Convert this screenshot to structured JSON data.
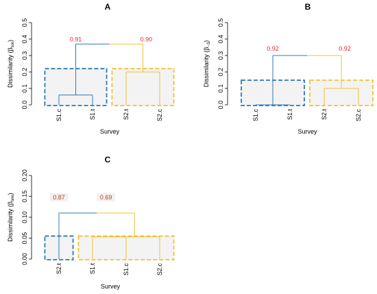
{
  "colors": {
    "blue": "#2b78b8",
    "yellow": "#f1c232",
    "red": "#e8252d",
    "dark_red": "#a0462a",
    "box_fill": "#f3f3f3",
    "label_bg": "#f5efef"
  },
  "chart_data": [
    {
      "type": "dendrogram",
      "panel": "A",
      "ylabel_main": "Dissimilarity (β",
      "ylabel_sub": "sor",
      "ylabel_close": ")",
      "xlabel": "Survey",
      "ylim": [
        0,
        0.5
      ],
      "yticks": [
        "0.0",
        "0.1",
        "0.2",
        "0.3",
        "0.4",
        "0.5"
      ],
      "leaves": [
        "S1.c",
        "S1.t",
        "S2.t",
        "S2.c"
      ],
      "merges": [
        {
          "left": 0,
          "right": 1,
          "height": 0.06,
          "color": "blue"
        },
        {
          "left": 2,
          "right": 3,
          "height": 0.2,
          "color": "yellow"
        },
        {
          "left": "g0",
          "right": "g1",
          "height": 0.37
        }
      ],
      "clusters": [
        {
          "leaves": [
            0,
            1
          ],
          "color": "blue",
          "top": 0.22
        },
        {
          "leaves": [
            2,
            3
          ],
          "color": "yellow",
          "top": 0.22
        }
      ],
      "node_labels": [
        {
          "text": "0.91",
          "at_leaf": 0.5,
          "y": 0.385,
          "color": "red",
          "bg": false
        },
        {
          "text": "0.90",
          "at_leaf": 2.6,
          "y": 0.385,
          "color": "red",
          "bg": false
        }
      ]
    },
    {
      "type": "dendrogram",
      "panel": "B",
      "ylabel_main": "Dissimilarity (β",
      "ylabel_sub": "−3",
      "ylabel_close": ")",
      "xlabel": "Survey",
      "ylim": [
        0,
        0.5
      ],
      "yticks": [
        "0.0",
        "0.1",
        "0.2",
        "0.3",
        "0.4",
        "0.5"
      ],
      "leaves": [
        "S1.c",
        "S1.t",
        "S2.t",
        "S2.c"
      ],
      "merges": [
        {
          "left": 0,
          "right": 1,
          "height": 0.0,
          "color": "blue"
        },
        {
          "left": 2,
          "right": 3,
          "height": 0.1,
          "color": "yellow"
        },
        {
          "left": "g0",
          "right": "g1",
          "height": 0.3
        }
      ],
      "clusters": [
        {
          "leaves": [
            0,
            1
          ],
          "color": "blue",
          "top": 0.15
        },
        {
          "leaves": [
            2,
            3
          ],
          "color": "yellow",
          "top": 0.15
        }
      ],
      "node_labels": [
        {
          "text": "0.92",
          "at_leaf": 0.5,
          "y": 0.33,
          "color": "red",
          "bg": false
        },
        {
          "text": "0.92",
          "at_leaf": 2.6,
          "y": 0.33,
          "color": "red",
          "bg": false
        }
      ]
    },
    {
      "type": "dendrogram",
      "panel": "C",
      "ylabel_main": "Dissimilarity (β",
      "ylabel_sub": "sne",
      "ylabel_close": ")",
      "xlabel": "Survey",
      "ylim": [
        0,
        0.2
      ],
      "yticks": [
        "0.00",
        "0.05",
        "0.10",
        "0.15",
        "0.20"
      ],
      "leaves": [
        "S2.t",
        "S1.t",
        "S1.c",
        "S2.c"
      ],
      "merges": [
        {
          "left": 1,
          "right": 2,
          "height": 0.053,
          "color": "yellow"
        },
        {
          "left": "g0",
          "right": 3,
          "height": 0.053,
          "color": "yellow"
        },
        {
          "left": 0,
          "right": "g1",
          "height": 0.11
        }
      ],
      "clusters": [
        {
          "leaves": [
            0
          ],
          "color": "blue",
          "top": 0.055
        },
        {
          "leaves": [
            1,
            2,
            3
          ],
          "color": "yellow",
          "top": 0.055
        }
      ],
      "node_labels": [
        {
          "text": "0.87",
          "at_leaf": 0.0,
          "y": 0.143,
          "color": "dark_red",
          "bg": true
        },
        {
          "text": "0.69",
          "at_leaf": 1.4,
          "y": 0.143,
          "color": "dark_red",
          "bg": true
        }
      ]
    }
  ]
}
